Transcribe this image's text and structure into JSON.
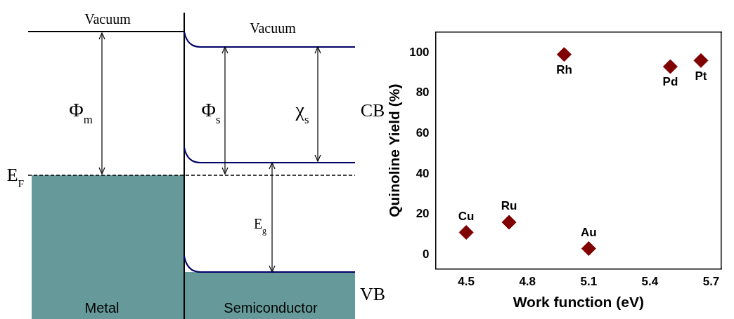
{
  "chart_data": [
    {
      "type": "other",
      "annotations": [
        "Vacuum",
        "Vacuum",
        "Φ$_{m}$",
        "Φ$_{s}$",
        "χ$_{s}$",
        "CB",
        "E$_{F}$",
        "E$_{g}$",
        "VB",
        "Metal",
        "Semiconductor"
      ]
    },
    {
      "type": "scatter",
      "xlabel": "Work function (eV)",
      "ylabel": "Quinoline Yield (%)",
      "x": [
        4.5,
        4.71,
        4.98,
        5.1,
        5.5,
        5.65
      ],
      "values": [
        11,
        16,
        99,
        3,
        93,
        96
      ],
      "color": "#800000",
      "marker": "diamond",
      "xlim": [
        4.35,
        5.75
      ],
      "xticks": [
        4.5,
        4.8,
        5.1,
        5.4,
        5.7
      ],
      "ylim": [
        -7,
        110
      ],
      "yticks": [
        0,
        20,
        40,
        60,
        80,
        100
      ],
      "grid": false,
      "legend": false,
      "annotations": [
        {
          "text": "Cu",
          "x": 4.5,
          "y": 11
        },
        {
          "text": "Ru",
          "x": 4.71,
          "y": 16
        },
        {
          "text": "Rh",
          "x": 4.98,
          "y": 99
        },
        {
          "text": "Au",
          "x": 5.1,
          "y": 3
        },
        {
          "text": "Pd",
          "x": 5.5,
          "y": 93
        },
        {
          "text": "Pt",
          "x": 5.65,
          "y": 96
        }
      ]
    }
  ]
}
